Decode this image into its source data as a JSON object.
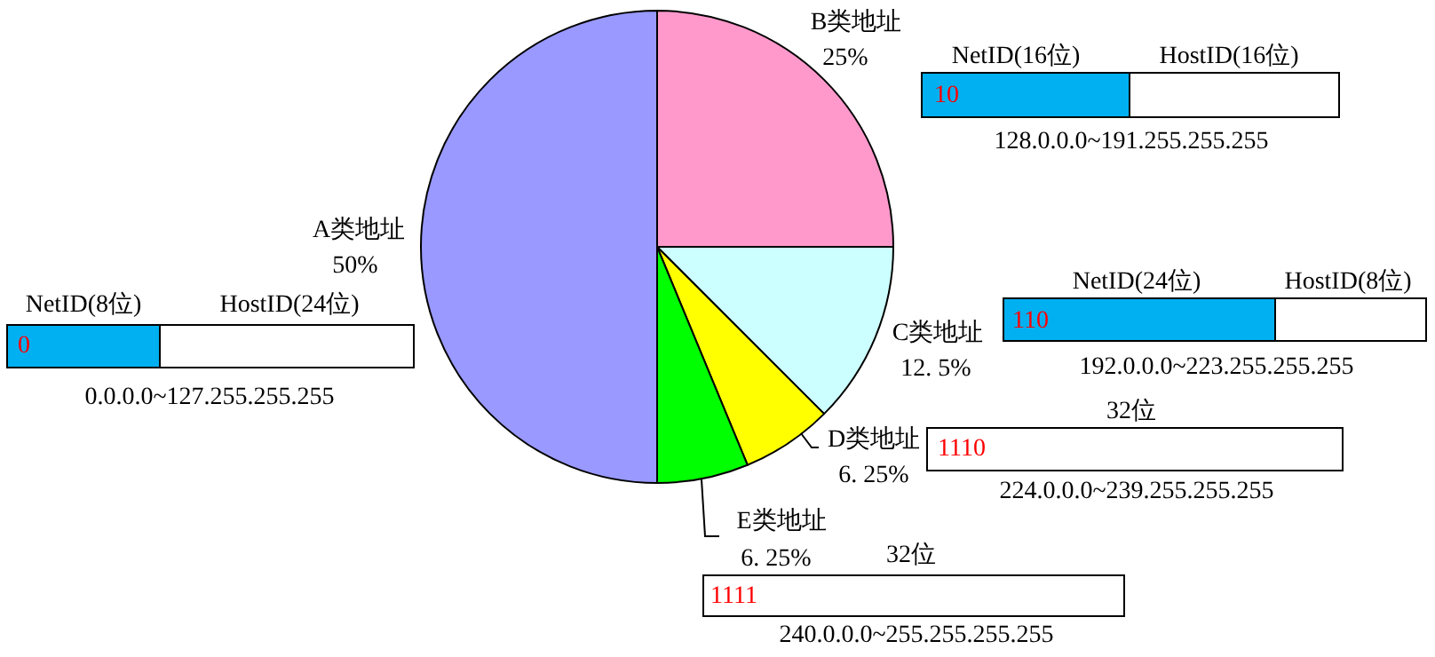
{
  "chart_data": {
    "type": "pie",
    "categories": [
      "B类地址",
      "C类地址",
      "D类地址",
      "E类地址",
      "A类地址"
    ],
    "values": [
      25,
      12.5,
      6.25,
      6.25,
      50
    ],
    "value_labels": [
      "25%",
      "12. 5%",
      "6. 25%",
      "6. 25%",
      "50%"
    ],
    "colors": [
      "#ff99cc",
      "#ccffff",
      "#ffff00",
      "#00ff00",
      "#9999ff"
    ],
    "annotations": [
      "NetID(8位)",
      "HostID(24位)",
      "0",
      "0.0.0.0~127.255.255.255",
      "NetID(16位)",
      "HostID(16位)",
      "10",
      "128.0.0.0~191.255.255.255",
      "NetID(24位)",
      "HostID(8位)",
      "110",
      "192.0.0.0~223.255.255.255",
      "32位",
      "1110",
      "224.0.0.0~239.255.255.255",
      "32位",
      "1111",
      "240.0.0.0~255.255.255.255"
    ]
  }
}
